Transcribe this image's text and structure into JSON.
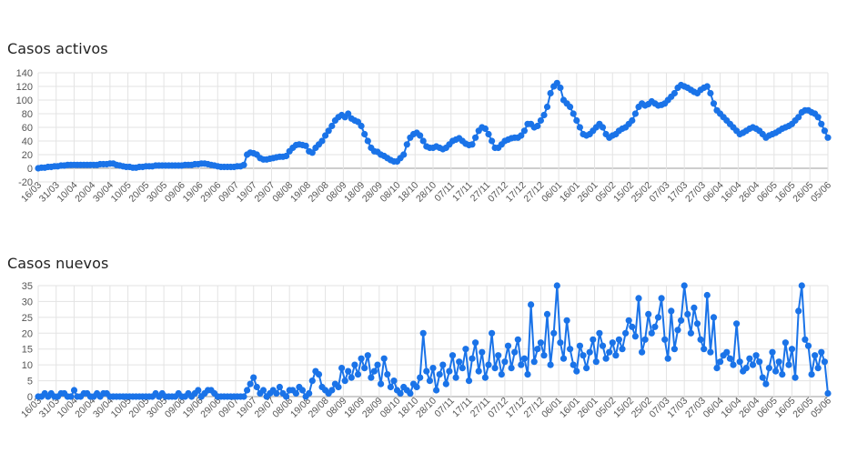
{
  "chart_data": [
    {
      "type": "line",
      "title": "Casos activos",
      "xlabel": "",
      "ylabel": "",
      "ylim": [
        -20,
        140
      ],
      "yticks": [
        -20,
        0,
        20,
        40,
        60,
        80,
        100,
        120,
        140
      ],
      "grid": true,
      "legend": "none",
      "x_labels": [
        "16/03",
        "31/03",
        "10/04",
        "20/04",
        "30/04",
        "10/05",
        "20/05",
        "30/05",
        "09/06",
        "19/06",
        "29/06",
        "09/07",
        "19/07",
        "29/07",
        "08/08",
        "19/08",
        "29/08",
        "08/09",
        "18/09",
        "28/09",
        "08/10",
        "18/10",
        "28/10",
        "07/11",
        "17/11",
        "27/11",
        "07/12",
        "17/12",
        "27/12",
        "06/01",
        "16/01",
        "26/01",
        "05/02",
        "15/02",
        "25/02",
        "07/03",
        "17/03",
        "27/03",
        "06/04",
        "16/04",
        "26/04",
        "06/05",
        "16/05",
        "26/05",
        "05/06"
      ],
      "series": [
        {
          "color": "#1a73e8",
          "values": [
            0,
            1,
            1,
            2,
            2,
            3,
            3,
            4,
            4,
            5,
            5,
            5,
            5,
            5,
            5,
            5,
            5,
            5,
            5,
            6,
            6,
            6,
            7,
            7,
            5,
            4,
            3,
            2,
            2,
            1,
            1,
            2,
            2,
            3,
            3,
            3,
            4,
            4,
            4,
            4,
            4,
            4,
            4,
            4,
            4,
            5,
            5,
            5,
            6,
            6,
            7,
            7,
            6,
            5,
            4,
            3,
            2,
            2,
            2,
            2,
            2,
            3,
            3,
            5,
            20,
            23,
            22,
            20,
            15,
            13,
            13,
            14,
            15,
            16,
            17,
            17,
            18,
            25,
            30,
            34,
            35,
            34,
            33,
            25,
            23,
            30,
            35,
            40,
            48,
            55,
            62,
            70,
            75,
            78,
            75,
            80,
            73,
            70,
            68,
            62,
            50,
            40,
            30,
            25,
            24,
            20,
            18,
            15,
            12,
            10,
            10,
            15,
            20,
            35,
            45,
            50,
            52,
            48,
            40,
            32,
            30,
            30,
            32,
            30,
            28,
            30,
            35,
            40,
            42,
            44,
            40,
            36,
            34,
            35,
            45,
            55,
            60,
            58,
            50,
            40,
            30,
            30,
            35,
            40,
            42,
            44,
            45,
            45,
            48,
            55,
            65,
            65,
            60,
            62,
            70,
            78,
            90,
            110,
            120,
            125,
            118,
            100,
            95,
            90,
            80,
            70,
            60,
            50,
            48,
            50,
            55,
            60,
            65,
            60,
            50,
            45,
            48,
            50,
            55,
            58,
            60,
            65,
            70,
            80,
            90,
            95,
            92,
            94,
            98,
            95,
            92,
            93,
            95,
            100,
            105,
            110,
            118,
            122,
            120,
            118,
            115,
            112,
            110,
            115,
            118,
            120,
            110,
            95,
            85,
            80,
            75,
            70,
            65,
            60,
            55,
            50,
            52,
            55,
            58,
            60,
            58,
            55,
            50,
            45,
            48,
            50,
            52,
            55,
            58,
            60,
            62,
            65,
            70,
            75,
            82,
            85,
            85,
            82,
            80,
            75,
            65,
            55,
            45
          ]
        }
      ]
    },
    {
      "type": "line",
      "title": "Casos nuevos",
      "xlabel": "",
      "ylabel": "",
      "ylim": [
        0,
        35
      ],
      "yticks": [
        0,
        5,
        10,
        15,
        20,
        25,
        30,
        35
      ],
      "grid": true,
      "legend": "none",
      "x_labels": [
        "16/03",
        "31/03",
        "10/04",
        "20/04",
        "30/04",
        "10/05",
        "20/05",
        "30/05",
        "09/06",
        "19/06",
        "29/06",
        "09/07",
        "19/07",
        "29/07",
        "08/08",
        "19/08",
        "29/08",
        "08/09",
        "18/09",
        "28/09",
        "08/10",
        "18/10",
        "28/10",
        "07/11",
        "17/11",
        "27/11",
        "07/12",
        "17/12",
        "27/12",
        "06/01",
        "16/01",
        "26/01",
        "05/02",
        "15/02",
        "25/02",
        "07/03",
        "17/03",
        "27/03",
        "06/04",
        "16/04",
        "26/04",
        "06/05",
        "16/05",
        "26/05",
        "05/06"
      ],
      "series": [
        {
          "color": "#1a73e8",
          "values": [
            0,
            0,
            1,
            0,
            1,
            0,
            0,
            1,
            1,
            0,
            0,
            2,
            0,
            0,
            1,
            1,
            0,
            0,
            1,
            0,
            1,
            1,
            0,
            0,
            0,
            0,
            0,
            0,
            0,
            0,
            0,
            0,
            0,
            0,
            0,
            0,
            1,
            0,
            1,
            0,
            0,
            0,
            0,
            1,
            0,
            0,
            1,
            0,
            1,
            2,
            0,
            1,
            2,
            2,
            1,
            0,
            0,
            0,
            0,
            0,
            0,
            0,
            0,
            0,
            2,
            4,
            6,
            3,
            1,
            2,
            0,
            1,
            2,
            1,
            3,
            1,
            0,
            2,
            2,
            1,
            3,
            2,
            0,
            1,
            5,
            8,
            7,
            3,
            2,
            1,
            2,
            4,
            3,
            9,
            5,
            8,
            6,
            10,
            7,
            12,
            9,
            13,
            6,
            8,
            10,
            4,
            12,
            7,
            3,
            5,
            2,
            1,
            3,
            2,
            1,
            4,
            3,
            6,
            20,
            8,
            5,
            9,
            2,
            7,
            10,
            4,
            8,
            13,
            6,
            11,
            9,
            15,
            5,
            12,
            17,
            8,
            14,
            6,
            10,
            20,
            9,
            13,
            7,
            11,
            16,
            9,
            14,
            18,
            10,
            12,
            7,
            29,
            11,
            15,
            17,
            13,
            26,
            10,
            20,
            35,
            17,
            12,
            24,
            15,
            10,
            8,
            16,
            13,
            9,
            14,
            18,
            11,
            20,
            16,
            12,
            14,
            17,
            13,
            18,
            15,
            20,
            24,
            22,
            19,
            31,
            14,
            18,
            26,
            20,
            22,
            25,
            31,
            18,
            12,
            27,
            15,
            21,
            24,
            35,
            26,
            20,
            28,
            23,
            18,
            15,
            32,
            14,
            25,
            9,
            11,
            13,
            14,
            12,
            10,
            23,
            11,
            8,
            9,
            12,
            10,
            13,
            11,
            6,
            4,
            9,
            14,
            8,
            11,
            7,
            17,
            10,
            15,
            6,
            27,
            35,
            18,
            16,
            7,
            13,
            9,
            14,
            11,
            1
          ]
        }
      ]
    }
  ]
}
